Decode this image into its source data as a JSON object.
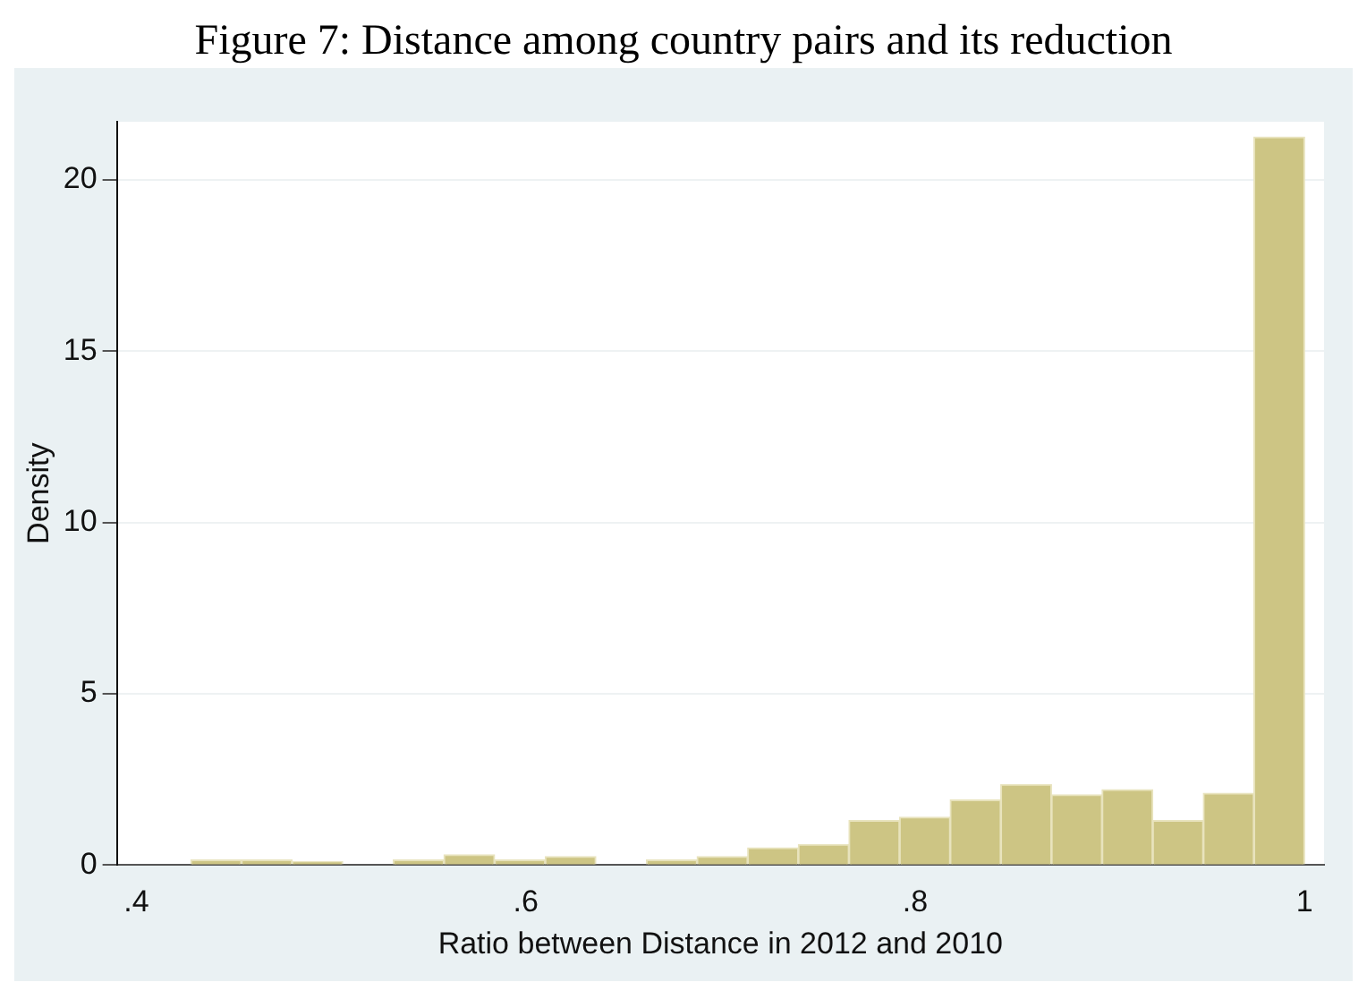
{
  "chart_data": {
    "type": "histogram",
    "title": "Figure 7: Distance among country pairs and its reduction",
    "xlabel": "Ratio between Distance in 2012 and 2010",
    "ylabel": "Density",
    "bins": [
      0.428,
      0.454,
      0.48,
      0.506,
      0.532,
      0.558,
      0.584,
      0.61,
      0.636,
      0.662,
      0.688,
      0.714,
      0.74,
      0.766,
      0.792,
      0.818,
      0.844,
      0.87,
      0.896,
      0.922,
      0.948,
      0.974,
      1.0
    ],
    "values": [
      0.15,
      0.15,
      0.1,
      0,
      0.15,
      0.3,
      0.15,
      0.25,
      0,
      0.15,
      0.25,
      0.5,
      0.6,
      1.3,
      1.4,
      1.9,
      2.35,
      2.05,
      2.2,
      1.3,
      2.1,
      21.25
    ],
    "color": "#cdc584",
    "xlim": [
      0.39,
      1.01
    ],
    "xticks": [
      {
        "value": 0.4,
        "label": ".4"
      },
      {
        "value": 0.6,
        "label": ".6"
      },
      {
        "value": 0.8,
        "label": ".8"
      },
      1
    ],
    "ylim": [
      0,
      21.7
    ],
    "yticks": [
      0,
      5,
      10,
      15,
      20
    ],
    "grid": "y"
  }
}
